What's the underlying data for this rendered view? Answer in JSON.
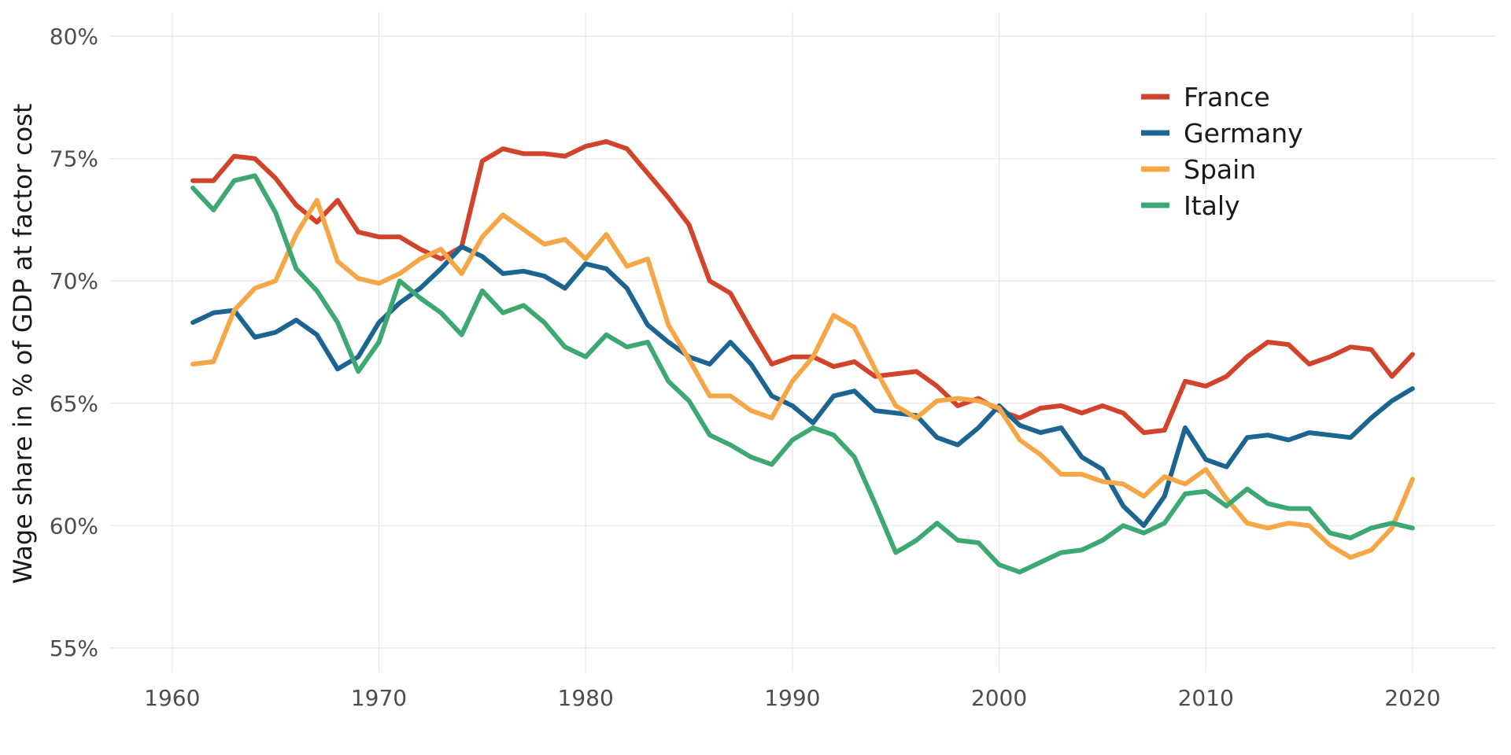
{
  "chart_data": {
    "type": "line",
    "title": "",
    "xlabel": "",
    "ylabel": "Wage share in % of GDP at factor cost",
    "xlim": [
      1957,
      2024
    ],
    "ylim": [
      54,
      81
    ],
    "x_ticks": [
      1960,
      1970,
      1980,
      1990,
      2000,
      2010,
      2020
    ],
    "x_tick_labels": [
      "1960",
      "1970",
      "1980",
      "1990",
      "2000",
      "2010",
      "2020"
    ],
    "y_ticks": [
      55,
      60,
      65,
      70,
      75,
      80
    ],
    "y_tick_labels": [
      "55%",
      "60%",
      "65%",
      "70%",
      "75%",
      "80%"
    ],
    "grid": true,
    "legend_position": "top-right",
    "x": [
      1961,
      1962,
      1963,
      1964,
      1965,
      1966,
      1967,
      1968,
      1969,
      1970,
      1971,
      1972,
      1973,
      1974,
      1975,
      1976,
      1977,
      1978,
      1979,
      1980,
      1981,
      1982,
      1983,
      1984,
      1985,
      1986,
      1987,
      1988,
      1989,
      1990,
      1991,
      1992,
      1993,
      1994,
      1995,
      1996,
      1997,
      1998,
      1999,
      2000,
      2001,
      2002,
      2003,
      2004,
      2005,
      2006,
      2007,
      2008,
      2009,
      2010,
      2011,
      2012,
      2013,
      2014,
      2015,
      2016,
      2017,
      2018,
      2019,
      2020
    ],
    "series": [
      {
        "name": "France",
        "color": "#d1432b",
        "values": [
          74.1,
          74.1,
          75.1,
          75.0,
          74.2,
          73.1,
          72.4,
          73.3,
          72.0,
          71.8,
          71.8,
          71.3,
          70.9,
          71.4,
          74.9,
          75.4,
          75.2,
          75.2,
          75.1,
          75.5,
          75.7,
          75.4,
          74.4,
          73.4,
          72.3,
          70.0,
          69.5,
          68.0,
          66.6,
          66.9,
          66.9,
          66.5,
          66.7,
          66.1,
          66.2,
          66.3,
          65.7,
          64.9,
          65.2,
          64.7,
          64.4,
          64.8,
          64.9,
          64.6,
          64.9,
          64.6,
          63.8,
          63.9,
          65.9,
          65.7,
          66.1,
          66.9,
          67.5,
          67.4,
          66.6,
          66.9,
          67.3,
          67.2,
          66.1,
          67.0
        ]
      },
      {
        "name": "Germany",
        "color": "#1c6591",
        "values": [
          68.3,
          68.7,
          68.8,
          67.7,
          67.9,
          68.4,
          67.8,
          66.4,
          66.9,
          68.3,
          69.1,
          69.7,
          70.5,
          71.4,
          71.0,
          70.3,
          70.4,
          70.2,
          69.7,
          70.7,
          70.5,
          69.7,
          68.2,
          67.5,
          66.9,
          66.6,
          67.5,
          66.6,
          65.3,
          64.9,
          64.2,
          65.3,
          65.5,
          64.7,
          64.6,
          64.5,
          63.6,
          63.3,
          64.0,
          64.9,
          64.1,
          63.8,
          64.0,
          62.8,
          62.3,
          60.8,
          60.0,
          61.2,
          64.0,
          62.7,
          62.4,
          63.6,
          63.7,
          63.5,
          63.8,
          63.7,
          63.6,
          64.4,
          65.1,
          65.6
        ]
      },
      {
        "name": "Spain",
        "color": "#f5a646",
        "values": [
          66.6,
          66.7,
          68.8,
          69.7,
          70.0,
          71.9,
          73.3,
          70.8,
          70.1,
          69.9,
          70.3,
          70.9,
          71.3,
          70.3,
          71.8,
          72.7,
          72.1,
          71.5,
          71.7,
          70.9,
          71.9,
          70.6,
          70.9,
          68.2,
          66.8,
          65.3,
          65.3,
          64.7,
          64.4,
          65.9,
          66.9,
          68.6,
          68.1,
          66.4,
          64.9,
          64.4,
          65.1,
          65.2,
          65.1,
          64.8,
          63.5,
          62.9,
          62.1,
          62.1,
          61.8,
          61.7,
          61.2,
          62.0,
          61.7,
          62.3,
          61.1,
          60.1,
          59.9,
          60.1,
          60.0,
          59.2,
          58.7,
          59.0,
          59.9,
          61.9
        ]
      },
      {
        "name": "Italy",
        "color": "#3da872",
        "values": [
          73.8,
          72.9,
          74.1,
          74.3,
          72.8,
          70.5,
          69.6,
          68.3,
          66.3,
          67.5,
          70.0,
          69.3,
          68.7,
          67.8,
          69.6,
          68.7,
          69.0,
          68.3,
          67.3,
          66.9,
          67.8,
          67.3,
          67.5,
          65.9,
          65.1,
          63.7,
          63.3,
          62.8,
          62.5,
          63.5,
          64.0,
          63.7,
          62.8,
          60.9,
          58.9,
          59.4,
          60.1,
          59.4,
          59.3,
          58.4,
          58.1,
          58.5,
          58.9,
          59.0,
          59.4,
          60.0,
          59.7,
          60.1,
          61.3,
          61.4,
          60.8,
          61.5,
          60.9,
          60.7,
          60.7,
          59.7,
          59.5,
          59.9,
          60.1,
          59.9
        ]
      }
    ]
  }
}
